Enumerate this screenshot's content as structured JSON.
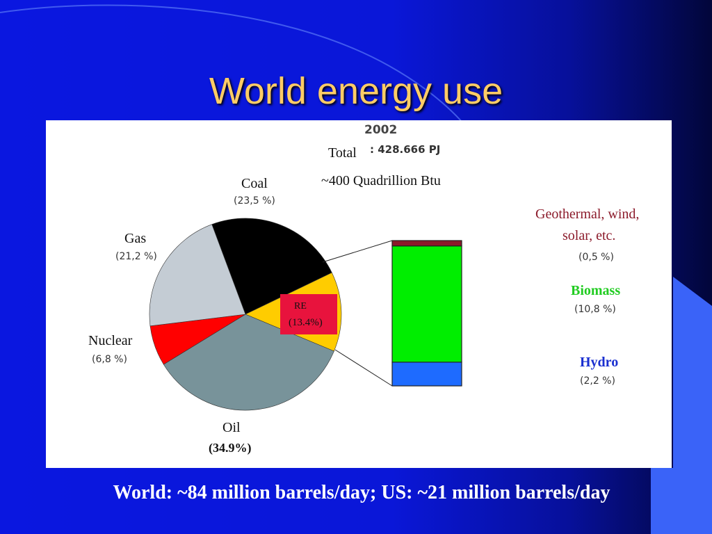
{
  "slide": {
    "title": "World energy use",
    "footer": "World: ~84 million barrels/day; US: ~21 million barrels/day"
  },
  "colors": {
    "title": "#ffcc66",
    "coal": "#000000",
    "gas": "#c4ccd4",
    "nuclear": "#ff0000",
    "oil": "#78939a",
    "re": "#ffcc00",
    "re_box": "#e8133d",
    "geothermal": "#8b1a2a",
    "biomass": "#00ee00",
    "hydro": "#1e6bff"
  },
  "chart_data": [
    {
      "type": "pie",
      "year": "2002",
      "total_label": "Total",
      "total_value": ": 428.666 PJ",
      "total_btu": "~400 Quadrillion Btu",
      "slices": [
        {
          "name": "Coal",
          "value": 23.5,
          "pct_label": "(23,5 %)"
        },
        {
          "name": "RE",
          "value": 13.4,
          "pct_label": "(13.4%)"
        },
        {
          "name": "Oil",
          "value": 34.9,
          "pct_label": "(34.9%)"
        },
        {
          "name": "Nuclear",
          "value": 6.8,
          "pct_label": "(6,8 %)"
        },
        {
          "name": "Gas",
          "value": 21.2,
          "pct_label": "(21,2 %)"
        }
      ]
    },
    {
      "type": "bar",
      "stacked": true,
      "breakdown_of": "RE",
      "segments": [
        {
          "name": "Hydro",
          "value": 2.2,
          "pct_label": "(2,2 %)"
        },
        {
          "name": "Biomass",
          "value": 10.8,
          "pct_label": "(10,8 %)"
        },
        {
          "name": "Geothermal, wind, solar, etc.",
          "line1": "Geothermal, wind,",
          "line2": "solar, etc.",
          "value": 0.5,
          "pct_label": "(0,5 %)"
        }
      ]
    }
  ]
}
